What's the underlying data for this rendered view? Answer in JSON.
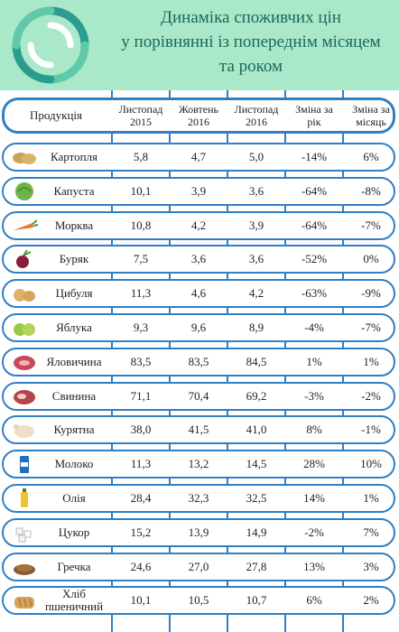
{
  "title_lines": [
    "Динаміка споживчих цін",
    "у порівнянні із попереднім місяцем",
    "та роком"
  ],
  "columns": {
    "product": "Продукція",
    "nov2015": "Листопад 2015",
    "oct2016": "Жовтень 2016",
    "nov2016": "Листопад 2016",
    "change_year": "Зміна за рік",
    "change_month": "Зміна за місяць"
  },
  "colors": {
    "header_bg": "#a9e8c9",
    "border": "#2f7fc4",
    "title": "#1b6a58",
    "logo_teal": "#2a9d8f"
  },
  "rows": [
    {
      "name": "Картопля",
      "icon": "potato-icon",
      "v1": "5,8",
      "v2": "4,7",
      "v3": "5,0",
      "year": "-14%",
      "month": "6%"
    },
    {
      "name": "Капуста",
      "icon": "cabbage-icon",
      "v1": "10,1",
      "v2": "3,9",
      "v3": "3,6",
      "year": "-64%",
      "month": "-8%"
    },
    {
      "name": "Морква",
      "icon": "carrot-icon",
      "v1": "10,8",
      "v2": "4,2",
      "v3": "3,9",
      "year": "-64%",
      "month": "-7%"
    },
    {
      "name": "Буряк",
      "icon": "beet-icon",
      "v1": "7,5",
      "v2": "3,6",
      "v3": "3,6",
      "year": "-52%",
      "month": "0%"
    },
    {
      "name": "Цибуля",
      "icon": "onion-icon",
      "v1": "11,3",
      "v2": "4,6",
      "v3": "4,2",
      "year": "-63%",
      "month": "-9%"
    },
    {
      "name": "Яблука",
      "icon": "apple-icon",
      "v1": "9,3",
      "v2": "9,6",
      "v3": "8,9",
      "year": "-4%",
      "month": "-7%"
    },
    {
      "name": "Яловичина",
      "icon": "beef-icon",
      "v1": "83,5",
      "v2": "83,5",
      "v3": "84,5",
      "year": "1%",
      "month": "1%"
    },
    {
      "name": "Свинина",
      "icon": "pork-icon",
      "v1": "71,1",
      "v2": "70,4",
      "v3": "69,2",
      "year": "-3%",
      "month": "-2%"
    },
    {
      "name": "Курятна",
      "icon": "chicken-icon",
      "v1": "38,0",
      "v2": "41,5",
      "v3": "41,0",
      "year": "8%",
      "month": "-1%"
    },
    {
      "name": "Молоко",
      "icon": "milk-icon",
      "v1": "11,3",
      "v2": "13,2",
      "v3": "14,5",
      "year": "28%",
      "month": "10%"
    },
    {
      "name": "Олія",
      "icon": "oil-bottle-icon",
      "v1": "28,4",
      "v2": "32,3",
      "v3": "32,5",
      "year": "14%",
      "month": "1%"
    },
    {
      "name": "Цукор",
      "icon": "sugar-icon",
      "v1": "15,2",
      "v2": "13,9",
      "v3": "14,9",
      "year": "-2%",
      "month": "7%"
    },
    {
      "name": "Гречка",
      "icon": "buckwheat-icon",
      "v1": "24,6",
      "v2": "27,0",
      "v3": "27,8",
      "year": "13%",
      "month": "3%"
    },
    {
      "name": "Хліб пшеничний",
      "icon": "bread-icon",
      "v1": "10,1",
      "v2": "10,5",
      "v3": "10,7",
      "year": "6%",
      "month": "2%"
    }
  ]
}
